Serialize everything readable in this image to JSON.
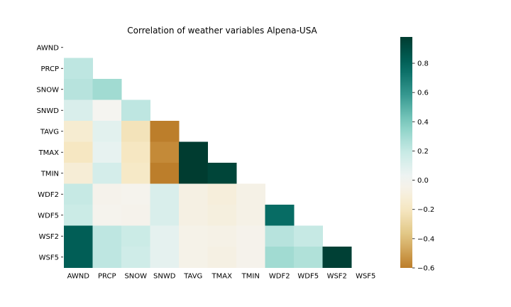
{
  "chart_data": {
    "type": "heatmap",
    "title": "Correlation of weather variables Alpena-USA",
    "variables": [
      "AWND",
      "PRCP",
      "SNOW",
      "SNWD",
      "TAVG",
      "TMAX",
      "TMIN",
      "WDF2",
      "WDF5",
      "WSF2",
      "WSF5"
    ],
    "mask": "upper triangle including diagonal",
    "matrix": [
      [
        null,
        null,
        null,
        null,
        null,
        null,
        null,
        null,
        null,
        null,
        null
      ],
      [
        0.22,
        null,
        null,
        null,
        null,
        null,
        null,
        null,
        null,
        null,
        null
      ],
      [
        0.24,
        0.3,
        null,
        null,
        null,
        null,
        null,
        null,
        null,
        null,
        null
      ],
      [
        0.12,
        -0.02,
        0.22,
        null,
        null,
        null,
        null,
        null,
        null,
        null,
        null
      ],
      [
        -0.14,
        0.08,
        -0.22,
        -0.6,
        null,
        null,
        null,
        null,
        null,
        null,
        null
      ],
      [
        -0.2,
        0.06,
        -0.2,
        -0.56,
        0.98,
        null,
        null,
        null,
        null,
        null,
        null
      ],
      [
        -0.12,
        0.14,
        -0.18,
        -0.6,
        0.98,
        0.94,
        null,
        null,
        null,
        null,
        null
      ],
      [
        0.2,
        -0.04,
        -0.03,
        0.12,
        -0.07,
        -0.1,
        -0.06,
        null,
        null,
        null,
        null
      ],
      [
        0.18,
        -0.03,
        -0.04,
        0.12,
        -0.07,
        -0.09,
        -0.06,
        0.76,
        null,
        null,
        null
      ],
      [
        0.82,
        0.22,
        0.18,
        0.07,
        -0.05,
        -0.06,
        -0.04,
        0.24,
        0.2,
        null,
        null
      ],
      [
        0.82,
        0.22,
        0.16,
        0.07,
        -0.05,
        -0.07,
        -0.04,
        0.3,
        0.26,
        0.96,
        null
      ]
    ],
    "colorbar": {
      "cmap": "BrBG",
      "vmin": -0.6,
      "vmax": 0.98,
      "ticks": [
        "0.8",
        "0.6",
        "0.4",
        "0.2",
        "0.0",
        "−0.2",
        "−0.4",
        "−0.6"
      ],
      "tick_values": [
        0.8,
        0.6,
        0.4,
        0.2,
        0.0,
        -0.2,
        -0.4,
        -0.6
      ]
    }
  }
}
